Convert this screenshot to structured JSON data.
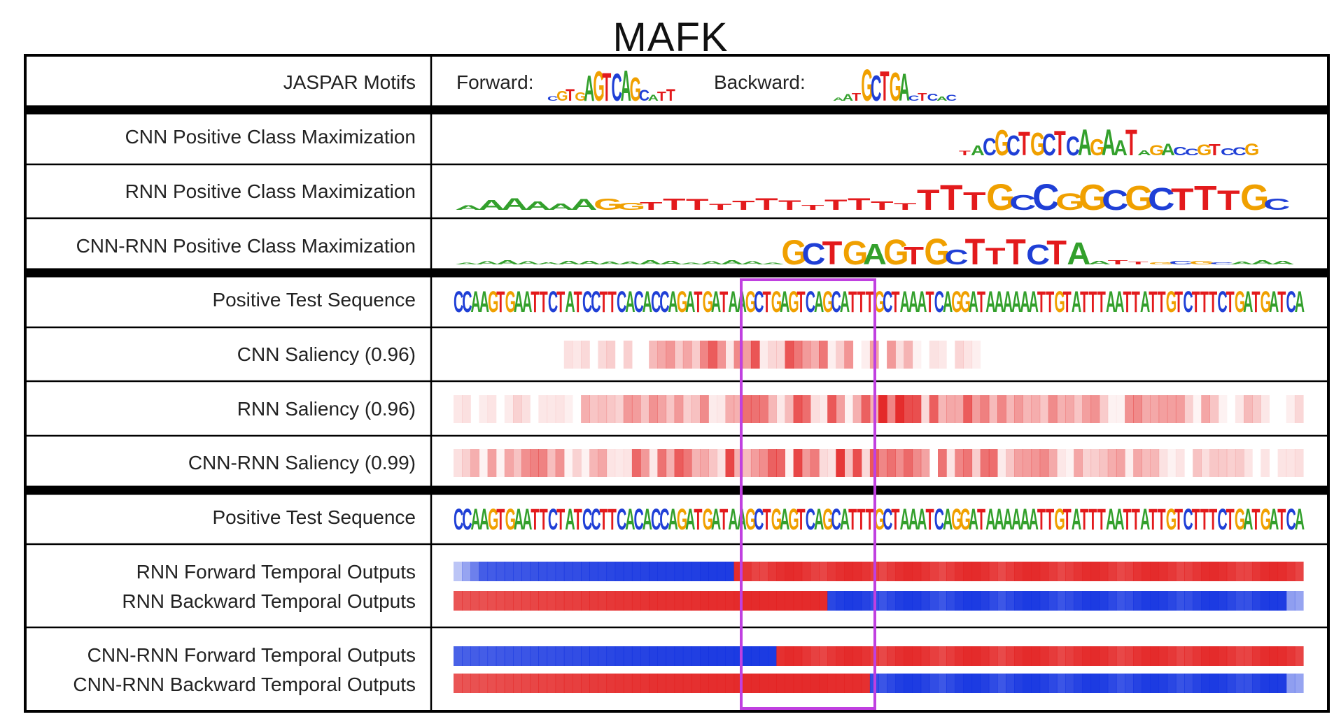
{
  "title": "MAFK",
  "sections": {
    "jaspar": {
      "label": "JASPAR Motifs",
      "forward_label": "Forward:",
      "forward_motif": "CGTGAGTCAGCATT",
      "backward_label": "Backward:",
      "backward_motif": "AATGCTGACTCAC"
    },
    "class_max": [
      {
        "label": "CNN Positive Class Maximization",
        "motif": "TACGCTGCTCAGAATAGACCGTCCG"
      },
      {
        "label": "RNN Positive Class Maximization",
        "motif": "AAAAAAGGTTTTTTTTTTTTTTTGCCGGCGCTTTGC"
      },
      {
        "label": "CNN-RNN Positive Class Maximization",
        "motif": "AAAAAAAAAAAAAAAAGCTGAGTGCTTTCTAATTGCGCAAA"
      }
    ],
    "saliency": {
      "sequence_label": "Positive Test Sequence",
      "sequence": "CCAAGTGAATTCTATCCTTCACACCAGATGATAAGCTGAGTCAGCATTTGCTAAATCAGGATAAAAAATTGTATTTAATTATTGTCTTTCTGATGATCA",
      "rows": [
        {
          "label": "CNN Saliency (0.96)"
        },
        {
          "label": "RNN Saliency (0.96)"
        },
        {
          "label": "CNN-RNN Saliency (0.99)"
        }
      ]
    },
    "temporal": {
      "sequence_label": "Positive Test Sequence",
      "groups": [
        {
          "forward_label": "RNN Forward Temporal Outputs",
          "backward_label": "RNN Backward Temporal Outputs"
        },
        {
          "forward_label": "CNN-RNN Forward Temporal Outputs",
          "backward_label": "CNN-RNN Backward Temporal Outputs"
        }
      ]
    }
  },
  "colors": {
    "A": "#33a02c",
    "C": "#1f3fd6",
    "G": "#f0a000",
    "T": "#e31a1c",
    "forward_label": "#dd33dd",
    "highlight_box": "#c040e0",
    "positive": "#e32020",
    "negative": "#1030e0"
  }
}
